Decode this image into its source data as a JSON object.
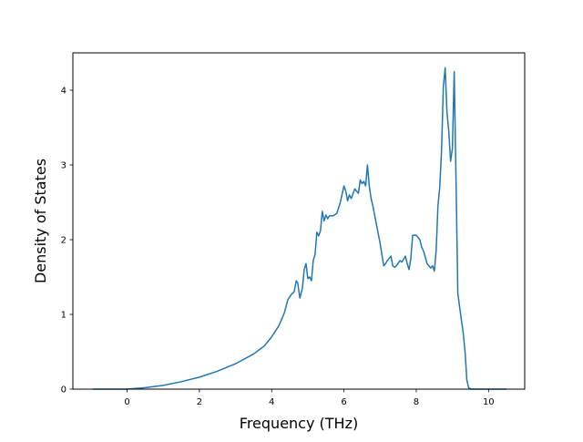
{
  "chart_data": {
    "type": "line",
    "title": "",
    "xlabel": "Frequency (THz)",
    "ylabel": "Density of States",
    "xlim": [
      -1.5,
      11.0
    ],
    "ylim": [
      0,
      4.5
    ],
    "xticks": [
      0,
      2,
      4,
      6,
      8,
      10
    ],
    "yticks": [
      0,
      1,
      2,
      3,
      4
    ],
    "x_tick_labels": [
      "0",
      "2",
      "4",
      "6",
      "8",
      "10"
    ],
    "y_tick_labels": [
      "0",
      "1",
      "2",
      "3",
      "4"
    ],
    "grid": false,
    "legend": "none",
    "series": [
      {
        "color": "#1f77b4",
        "x": [
          -0.95,
          0.0,
          0.5,
          1.0,
          1.5,
          2.0,
          2.5,
          3.0,
          3.5,
          3.8,
          4.0,
          4.2,
          4.35,
          4.45,
          4.55,
          4.62,
          4.68,
          4.72,
          4.78,
          4.85,
          4.9,
          4.95,
          5.0,
          5.05,
          5.1,
          5.15,
          5.2,
          5.25,
          5.3,
          5.35,
          5.4,
          5.45,
          5.5,
          5.55,
          5.6,
          5.7,
          5.8,
          5.9,
          6.0,
          6.05,
          6.1,
          6.15,
          6.2,
          6.3,
          6.4,
          6.45,
          6.5,
          6.55,
          6.6,
          6.65,
          6.7,
          6.75,
          6.8,
          6.9,
          7.0,
          7.1,
          7.15,
          7.2,
          7.3,
          7.35,
          7.4,
          7.45,
          7.55,
          7.6,
          7.7,
          7.75,
          7.8,
          7.85,
          7.9,
          8.0,
          8.1,
          8.15,
          8.2,
          8.3,
          8.4,
          8.45,
          8.5,
          8.55,
          8.6,
          8.65,
          8.7,
          8.75,
          8.8,
          8.85,
          8.9,
          8.95,
          9.0,
          9.05,
          9.1,
          9.15,
          9.2,
          9.25,
          9.3,
          9.35,
          9.4,
          9.45,
          9.5,
          9.55,
          9.6,
          9.7,
          10.0,
          10.5
        ],
        "y": [
          0.0,
          0.0,
          0.02,
          0.05,
          0.1,
          0.16,
          0.24,
          0.34,
          0.47,
          0.58,
          0.7,
          0.85,
          1.02,
          1.2,
          1.27,
          1.3,
          1.45,
          1.42,
          1.22,
          1.35,
          1.6,
          1.68,
          1.48,
          1.5,
          1.45,
          1.72,
          1.8,
          2.1,
          2.05,
          2.12,
          2.38,
          2.25,
          2.33,
          2.28,
          2.32,
          2.32,
          2.35,
          2.5,
          2.72,
          2.65,
          2.52,
          2.6,
          2.55,
          2.68,
          2.62,
          2.8,
          2.75,
          2.78,
          2.72,
          3.0,
          2.72,
          2.55,
          2.45,
          2.2,
          1.95,
          1.65,
          1.68,
          1.72,
          1.78,
          1.65,
          1.63,
          1.65,
          1.72,
          1.7,
          1.78,
          1.68,
          1.6,
          1.75,
          2.06,
          2.06,
          2.0,
          1.9,
          1.85,
          1.68,
          1.62,
          1.65,
          1.58,
          1.85,
          2.45,
          2.7,
          3.2,
          4.05,
          4.3,
          3.7,
          3.45,
          3.05,
          3.22,
          4.25,
          2.8,
          1.28,
          1.1,
          0.92,
          0.75,
          0.5,
          0.12,
          0.02,
          0.0,
          0.0,
          0.0,
          0.0,
          0.0,
          0.0
        ]
      }
    ]
  }
}
